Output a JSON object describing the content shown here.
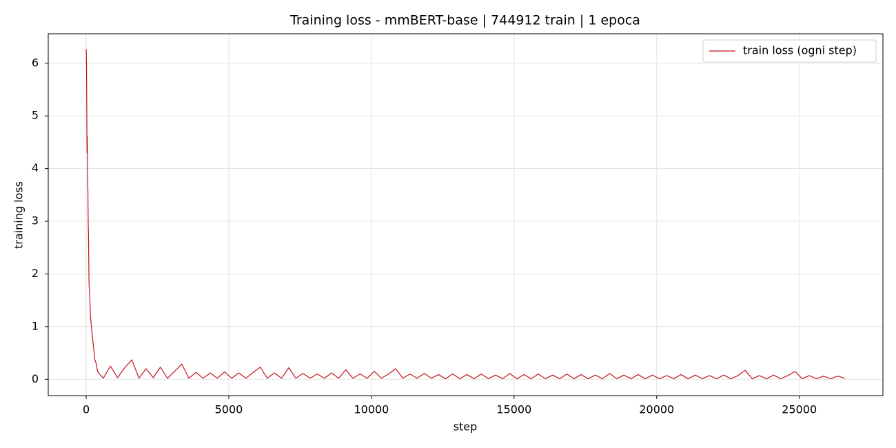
{
  "chart_data": {
    "type": "line",
    "title": "Training loss - mmBERT-base | 744912 train | 1 epoca",
    "x_label": "step",
    "y_label": "training loss",
    "x": [
      0,
      10,
      20,
      30,
      40,
      50,
      60,
      70,
      80,
      100,
      120,
      150,
      200,
      250,
      300,
      350,
      400,
      500,
      600,
      850,
      1100,
      1350,
      1600,
      1850,
      2100,
      2350,
      2600,
      2850,
      3100,
      3350,
      3600,
      3850,
      4100,
      4350,
      4600,
      4850,
      5100,
      5350,
      5600,
      5850,
      6100,
      6350,
      6600,
      6850,
      7100,
      7350,
      7600,
      7850,
      8100,
      8350,
      8600,
      8850,
      9100,
      9350,
      9600,
      9850,
      10100,
      10350,
      10600,
      10850,
      11100,
      11350,
      11600,
      11850,
      12100,
      12350,
      12600,
      12850,
      13100,
      13350,
      13600,
      13850,
      14100,
      14350,
      14600,
      14850,
      15100,
      15350,
      15600,
      15850,
      16100,
      16350,
      16600,
      16850,
      17100,
      17350,
      17600,
      17850,
      18100,
      18350,
      18600,
      18850,
      19100,
      19350,
      19600,
      19850,
      20100,
      20350,
      20600,
      20850,
      21100,
      21350,
      21600,
      21850,
      22100,
      22350,
      22600,
      22850,
      23100,
      23350,
      23600,
      23850,
      24100,
      24350,
      24600,
      24850,
      25100,
      25350,
      25600,
      25850,
      26100,
      26350,
      26600
    ],
    "series": [
      {
        "name": "train loss (ogni step)",
        "color": "#c0151f",
        "values": [
          6.27,
          6.0,
          5.28,
          4.3,
          4.6,
          3.9,
          3.6,
          3.0,
          2.75,
          1.8,
          1.65,
          1.2,
          0.9,
          0.65,
          0.38,
          0.3,
          0.15,
          0.08,
          0.02,
          0.25,
          0.03,
          0.22,
          0.37,
          0.02,
          0.2,
          0.03,
          0.23,
          0.02,
          0.15,
          0.29,
          0.02,
          0.13,
          0.02,
          0.12,
          0.02,
          0.14,
          0.02,
          0.12,
          0.02,
          0.13,
          0.23,
          0.02,
          0.12,
          0.02,
          0.22,
          0.02,
          0.11,
          0.02,
          0.1,
          0.02,
          0.12,
          0.02,
          0.18,
          0.02,
          0.1,
          0.02,
          0.15,
          0.02,
          0.1,
          0.2,
          0.02,
          0.1,
          0.02,
          0.11,
          0.02,
          0.09,
          0.01,
          0.1,
          0.01,
          0.09,
          0.01,
          0.1,
          0.01,
          0.08,
          0.01,
          0.11,
          0.01,
          0.09,
          0.01,
          0.1,
          0.01,
          0.08,
          0.01,
          0.1,
          0.01,
          0.09,
          0.01,
          0.08,
          0.01,
          0.11,
          0.01,
          0.08,
          0.01,
          0.09,
          0.01,
          0.08,
          0.01,
          0.07,
          0.01,
          0.09,
          0.01,
          0.08,
          0.01,
          0.07,
          0.01,
          0.08,
          0.01,
          0.07,
          0.17,
          0.01,
          0.07,
          0.01,
          0.08,
          0.01,
          0.07,
          0.15,
          0.01,
          0.07,
          0.01,
          0.06,
          0.01,
          0.06,
          0.02
        ]
      }
    ],
    "xlim": [
      -1330,
      27930
    ],
    "xticks": [
      0,
      5000,
      10000,
      15000,
      20000,
      25000
    ],
    "ylim": [
      -0.31,
      6.56
    ],
    "yticks": [
      0,
      1,
      2,
      3,
      4,
      5,
      6
    ],
    "grid": true,
    "legend": "upper right"
  }
}
